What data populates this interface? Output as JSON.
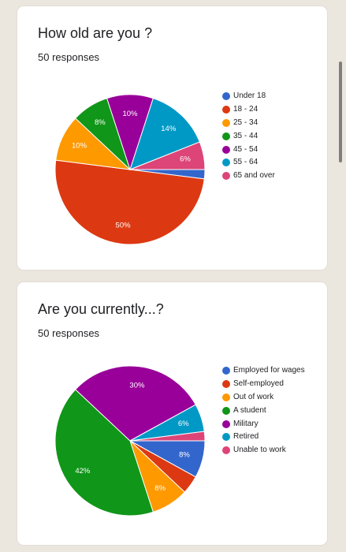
{
  "questions": [
    {
      "title": "How old are you ?",
      "responses": "50 responses",
      "chart_data": {
        "type": "pie",
        "title": "How old are you ?",
        "categories": [
          "Under 18",
          "18 - 24",
          "25 - 34",
          "35 - 44",
          "45 - 54",
          "55 - 64",
          "65 and over"
        ],
        "values": [
          2,
          50,
          10,
          8,
          10,
          14,
          6
        ],
        "labels": [
          "",
          "50%",
          "10%",
          "8%",
          "10%",
          "14%",
          "6%"
        ],
        "colors": [
          "#3366cc",
          "#dc3912",
          "#ff9900",
          "#109618",
          "#990099",
          "#0099c6",
          "#dd4477"
        ]
      }
    },
    {
      "title": "Are you currently...?",
      "responses": "50 responses",
      "chart_data": {
        "type": "pie",
        "title": "Are you currently...?",
        "categories": [
          "Employed for wages",
          "Self-employed",
          "Out of work",
          "A student",
          "Military",
          "Retired",
          "Unable to work"
        ],
        "values": [
          8,
          4,
          8,
          42,
          30,
          6,
          2
        ],
        "labels": [
          "8%",
          "",
          "8%",
          "42%",
          "30%",
          "6%",
          ""
        ],
        "colors": [
          "#3366cc",
          "#dc3912",
          "#ff9900",
          "#109618",
          "#990099",
          "#0099c6",
          "#dd4477"
        ]
      }
    }
  ]
}
